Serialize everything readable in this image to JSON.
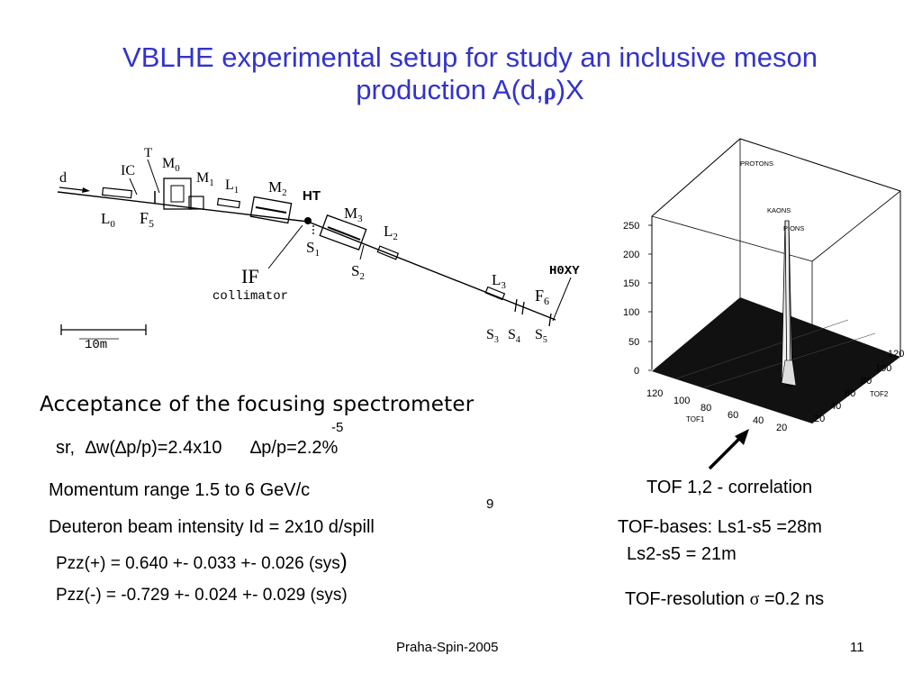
{
  "title": {
    "line1": "VBLHE experimental setup for study an inclusive meson",
    "line2_pre": "production A(d,",
    "line2_rho": "ρ",
    "line2_post": ")X"
  },
  "beamline": {
    "labels": {
      "d": "d",
      "ic": "IC",
      "t": "T",
      "m0": "M",
      "m0_sub": "0",
      "m1": "M",
      "m1_sub": "1",
      "l1": "L",
      "l1_sub": "1",
      "m2": "M",
      "m2_sub": "2",
      "ht": "HT",
      "m3": "M",
      "m3_sub": "3",
      "l2": "L",
      "l2_sub": "2",
      "l0": "L",
      "l0_sub": "0",
      "f5": "F",
      "f5_sub": "5",
      "s1": "S",
      "s1_sub": "1",
      "s2": "S",
      "s2_sub": "2",
      "if": "IF",
      "collimator": "collimator",
      "l3": "L",
      "l3_sub": "3",
      "hoxy": "H0XY",
      "f6": "F",
      "f6_sub": "6",
      "s3": "S",
      "s3_sub": "3",
      "s4": "S",
      "s4_sub": "4",
      "s5": "S",
      "s5_sub": "5",
      "scale": "10m"
    }
  },
  "plot3d": {
    "z_ticks": [
      "250",
      "200",
      "150",
      "100",
      "50",
      "0"
    ],
    "tof1_ticks": [
      "120",
      "100",
      "80",
      "60",
      "40",
      "20"
    ],
    "tof2_ticks": [
      "120",
      "100",
      "80",
      "60",
      "40",
      "20"
    ],
    "tof1_label": "TOF1",
    "tof2_label": "TOF2",
    "peaks": [
      "PROTONS",
      "KAONS",
      "PIONS"
    ]
  },
  "acceptance": {
    "heading": "Acceptance of the focusing spectrometer",
    "exp": "-5",
    "sr_label": "sr,",
    "dw": "∆w(∆p/p)=2.4x10",
    "dpp": "∆p/p=2.2%"
  },
  "momentum": "Momentum range  1.5 to 6 GeV/c",
  "intensity": {
    "text": "Deuteron beam intensity Id = 2x10 d/spill",
    "exp": "9"
  },
  "pzz_plus": "Pzz(+)  =  0.640 +- 0.033 +- 0.026 (sys",
  "pzz_plus_paren": ")",
  "pzz_minus": "Pzz(-)  = -0.729 +- 0.024 +- 0.029 (sys)",
  "tof": {
    "correlation": "TOF 1,2 - correlation",
    "bases1": "TOF-bases: Ls1-s5 =28m",
    "bases2": "Ls2-s5 = 21m",
    "resolution_pre": "TOF-resolution",
    "sigma": "σ",
    "resolution_post": "=0.2 ns"
  },
  "footer": {
    "center": "Praha-Spin-2005",
    "page": "11"
  }
}
